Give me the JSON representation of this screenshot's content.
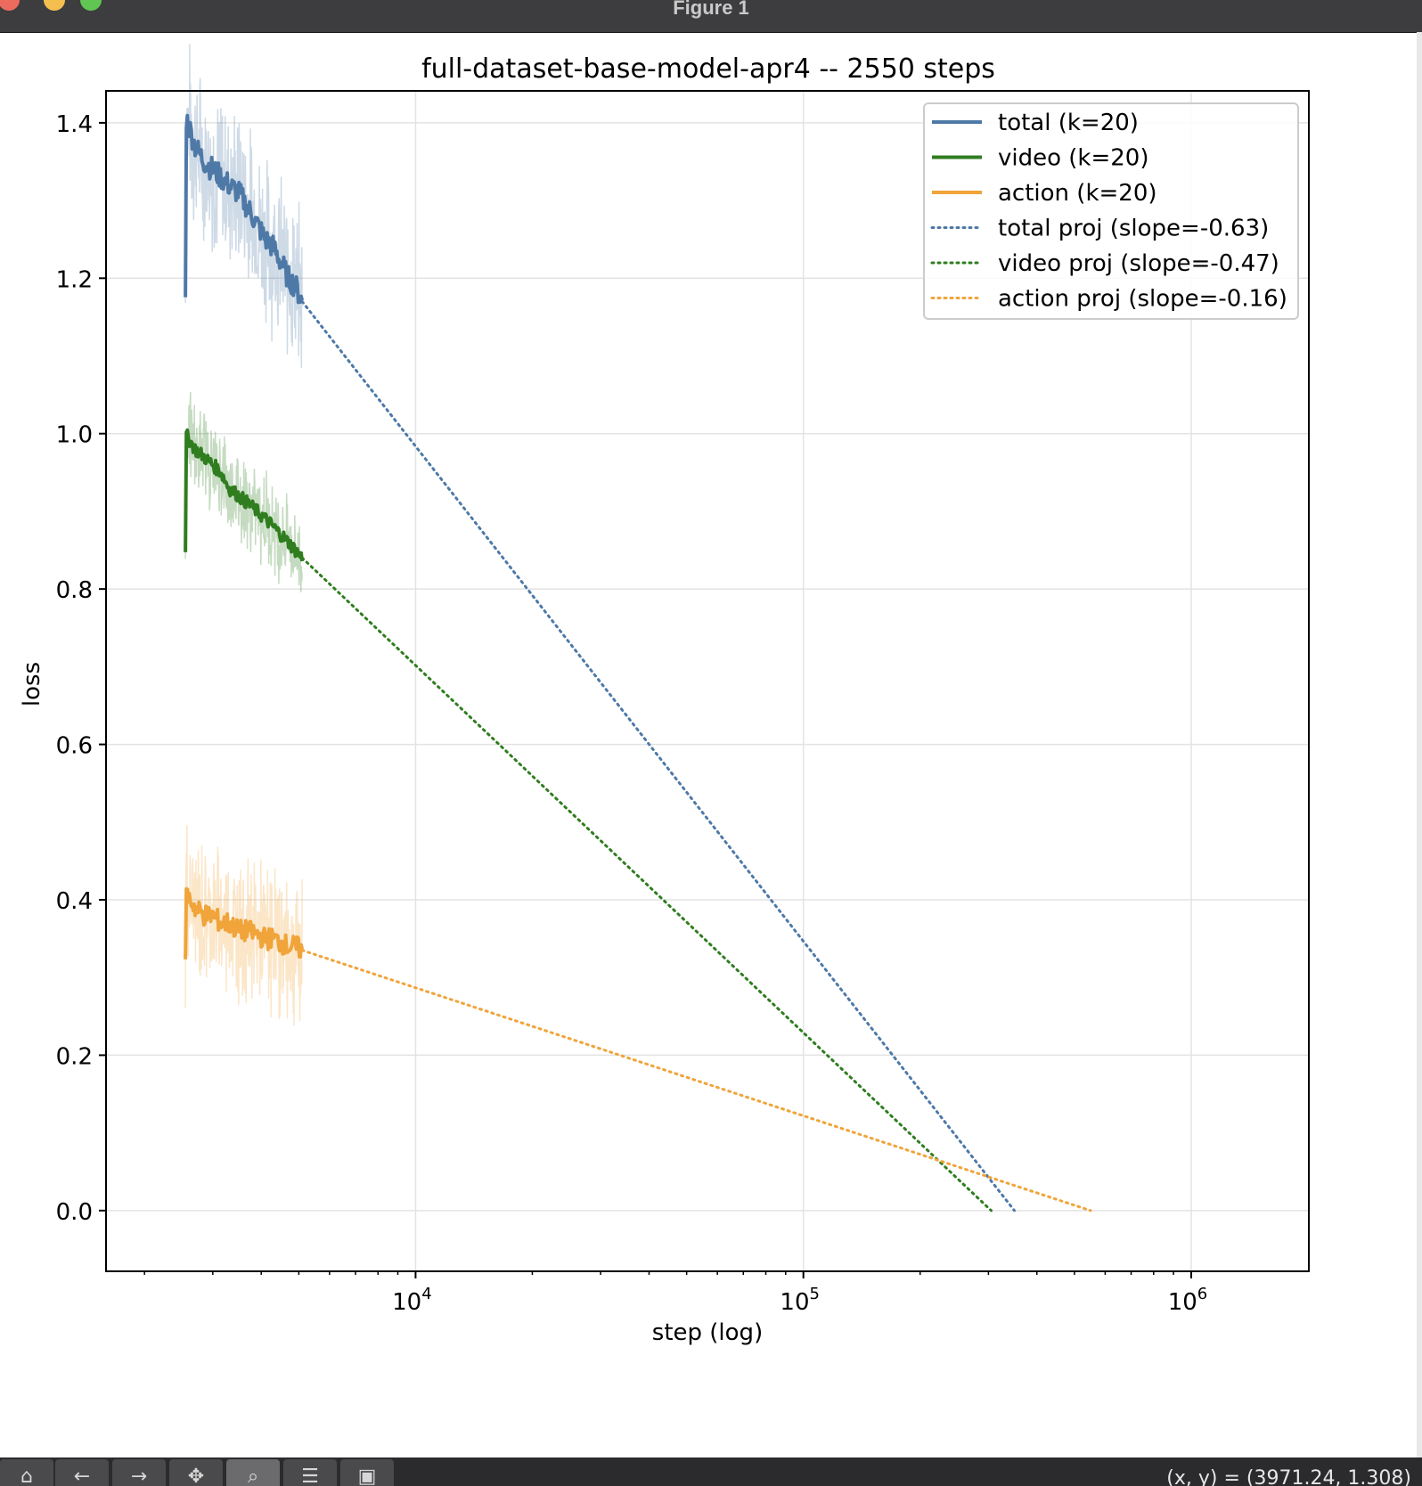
{
  "window": {
    "title": "Figure 1"
  },
  "toolbar": {
    "buttons": [
      {
        "name": "home",
        "glyph": "⌂"
      },
      {
        "name": "back",
        "glyph": "←"
      },
      {
        "name": "forward",
        "glyph": "→"
      },
      {
        "name": "pan",
        "glyph": "✥"
      },
      {
        "name": "zoom",
        "glyph": "⌕"
      },
      {
        "name": "configure",
        "glyph": "☰"
      },
      {
        "name": "save",
        "glyph": "▣"
      }
    ],
    "coords": "(x, y) = (3971.24, 1.308)"
  },
  "chart_data": {
    "type": "line",
    "title": "full-dataset-base-model-apr4 -- 2550 steps",
    "xlabel": "step (log)",
    "ylabel": "loss",
    "xscale": "log",
    "xlim": [
      1600,
      2000000
    ],
    "ylim": [
      -0.077,
      1.44
    ],
    "yticks": [
      0.0,
      0.2,
      0.4,
      0.6,
      0.8,
      1.0,
      1.2,
      1.4
    ],
    "ytick_labels": [
      "0.0",
      "0.2",
      "0.4",
      "0.6",
      "0.8",
      "1.0",
      "1.2",
      "1.4"
    ],
    "xticks": [
      10000,
      100000,
      1000000
    ],
    "xtick_labels": [
      {
        "base": "10",
        "exp": "4"
      },
      {
        "base": "10",
        "exp": "5"
      },
      {
        "base": "10",
        "exp": "6"
      }
    ],
    "grid": true,
    "legend_position": "top-right",
    "colors": {
      "total": "#4e79a7",
      "video": "#2f7d1f",
      "action": "#f0a43a"
    },
    "step_range": [
      2550,
      5100
    ],
    "series": [
      {
        "name": "total (k=20)",
        "key": "total",
        "style": "solid",
        "x": [
          2550,
          2700,
          2850,
          3000,
          3150,
          3300,
          3500,
          3700,
          3900,
          4100,
          4300,
          4500,
          4700,
          4900,
          5100
        ],
        "y": [
          1.41,
          1.37,
          1.35,
          1.34,
          1.33,
          1.32,
          1.31,
          1.29,
          1.27,
          1.25,
          1.24,
          1.22,
          1.2,
          1.19,
          1.17
        ],
        "raw_band": 0.09
      },
      {
        "name": "video (k=20)",
        "key": "video",
        "style": "solid",
        "x": [
          2550,
          2700,
          2850,
          3000,
          3150,
          3300,
          3500,
          3700,
          3900,
          4100,
          4300,
          4500,
          4700,
          4900,
          5100
        ],
        "y": [
          1.0,
          0.98,
          0.97,
          0.96,
          0.95,
          0.93,
          0.92,
          0.91,
          0.9,
          0.89,
          0.88,
          0.87,
          0.86,
          0.85,
          0.84
        ],
        "raw_band": 0.05
      },
      {
        "name": "action (k=20)",
        "key": "action",
        "style": "solid",
        "x": [
          2550,
          2700,
          2850,
          3000,
          3150,
          3300,
          3500,
          3700,
          3900,
          4100,
          4300,
          4500,
          4700,
          4900,
          5100
        ],
        "y": [
          0.41,
          0.39,
          0.38,
          0.38,
          0.37,
          0.37,
          0.36,
          0.36,
          0.355,
          0.35,
          0.35,
          0.345,
          0.34,
          0.34,
          0.335
        ],
        "raw_band": 0.08
      },
      {
        "name": "total proj (slope=-0.63)",
        "key": "total",
        "style": "dotted",
        "x": [
          5100,
          350000
        ],
        "y": [
          1.17,
          0.0
        ]
      },
      {
        "name": "video proj (slope=-0.47)",
        "key": "video",
        "style": "dotted",
        "x": [
          5100,
          305000
        ],
        "y": [
          0.84,
          0.0
        ]
      },
      {
        "name": "action proj (slope=-0.16)",
        "key": "action",
        "style": "dotted",
        "x": [
          5100,
          550000
        ],
        "y": [
          0.335,
          0.0
        ]
      }
    ]
  }
}
